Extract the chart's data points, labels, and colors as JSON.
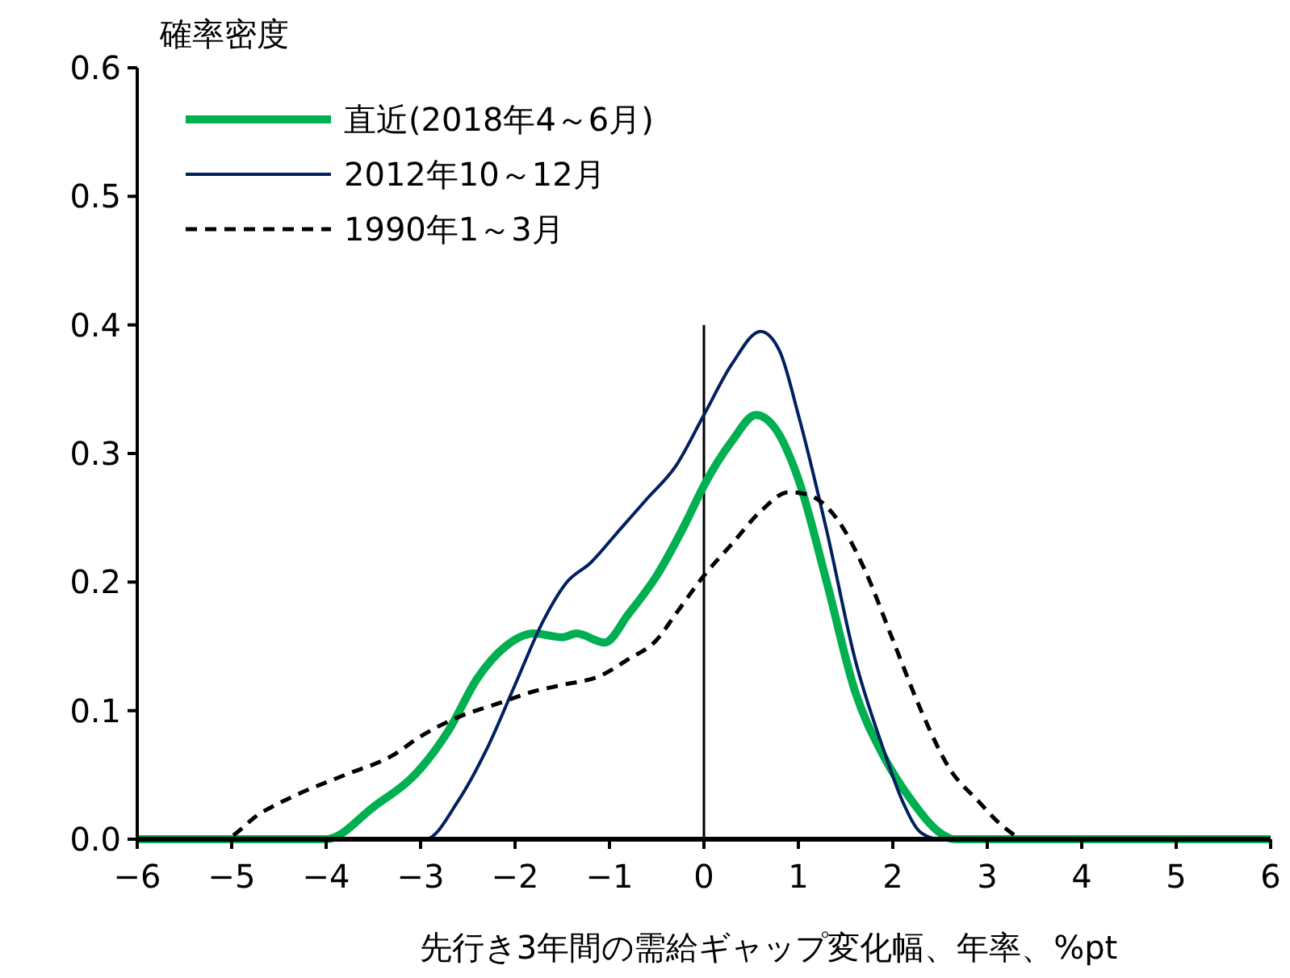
{
  "chart_data": {
    "type": "line",
    "xlabel": "先行き3年間の需給ギャップ変化幅、年率、%pt",
    "ylabel": "確率密度",
    "xlim": [
      -6,
      6
    ],
    "xticks": [
      {
        "value": -6,
        "label": "−6"
      },
      {
        "value": -5,
        "label": "−5"
      },
      {
        "value": -4,
        "label": "−4"
      },
      {
        "value": -3,
        "label": "−3"
      },
      {
        "value": -2,
        "label": "−2"
      },
      {
        "value": -1,
        "label": "−1"
      },
      0,
      1,
      2,
      3,
      4,
      5,
      6
    ],
    "ylim": [
      0,
      0.6
    ],
    "yticks": [
      {
        "value": 0,
        "label": "0.0"
      },
      0.1,
      0.2,
      0.3,
      0.4,
      0.5,
      0.6
    ],
    "grid": false,
    "legend": "top left",
    "ref_lines": [
      {
        "axis": "x",
        "value": 0,
        "label": null,
        "color": "#000000"
      }
    ],
    "series": [
      {
        "name": "直近(2018年4～6月)",
        "color": "#00b050",
        "line_style": "solid",
        "x": [
          -6,
          -4,
          -3.5,
          -3,
          -2.7,
          -2.4,
          -2.1,
          -1.8,
          -1.5,
          -1.35,
          -1.05,
          -0.8,
          -0.5,
          -0.2,
          0,
          0.3,
          0.55,
          0.75,
          1,
          1.3,
          1.6,
          1.9,
          2.2,
          2.5,
          2.65,
          6
        ],
        "values": [
          0,
          0,
          0.025,
          0.055,
          0.085,
          0.125,
          0.15,
          0.16,
          0.157,
          0.16,
          0.153,
          0.175,
          0.205,
          0.245,
          0.275,
          0.31,
          0.33,
          0.32,
          0.28,
          0.2,
          0.115,
          0.065,
          0.03,
          0.005,
          0,
          0
        ]
      },
      {
        "name": "2012年10～12月",
        "color": "#002060",
        "line_style": "solid",
        "x": [
          -6,
          -2.95,
          -2.6,
          -2.3,
          -2,
          -1.7,
          -1.45,
          -1.2,
          -0.9,
          -0.6,
          -0.3,
          0,
          0.3,
          0.6,
          0.8,
          1,
          1.3,
          1.6,
          1.9,
          2.1,
          2.3,
          2.5,
          6
        ],
        "values": [
          0,
          0,
          0.03,
          0.07,
          0.12,
          0.17,
          0.2,
          0.215,
          0.24,
          0.265,
          0.29,
          0.33,
          0.37,
          0.395,
          0.38,
          0.33,
          0.24,
          0.14,
          0.07,
          0.03,
          0.005,
          0,
          0
        ]
      },
      {
        "name": "1990年1～3月",
        "color": "#000000",
        "line_style": "dashed",
        "x": [
          -6,
          -5.1,
          -4.7,
          -4.3,
          -3.8,
          -3.3,
          -3,
          -2.6,
          -2.2,
          -1.8,
          -1.5,
          -1.1,
          -0.8,
          -0.5,
          -0.3,
          0,
          0.3,
          0.6,
          0.9,
          1.1,
          1.4,
          1.7,
          2,
          2.3,
          2.6,
          2.9,
          3.2,
          3.4,
          6
        ],
        "values": [
          0,
          0,
          0.02,
          0.035,
          0.05,
          0.065,
          0.08,
          0.095,
          0.105,
          0.115,
          0.12,
          0.127,
          0.14,
          0.155,
          0.175,
          0.205,
          0.23,
          0.255,
          0.27,
          0.268,
          0.25,
          0.21,
          0.155,
          0.1,
          0.055,
          0.03,
          0.008,
          0,
          0
        ]
      }
    ]
  }
}
